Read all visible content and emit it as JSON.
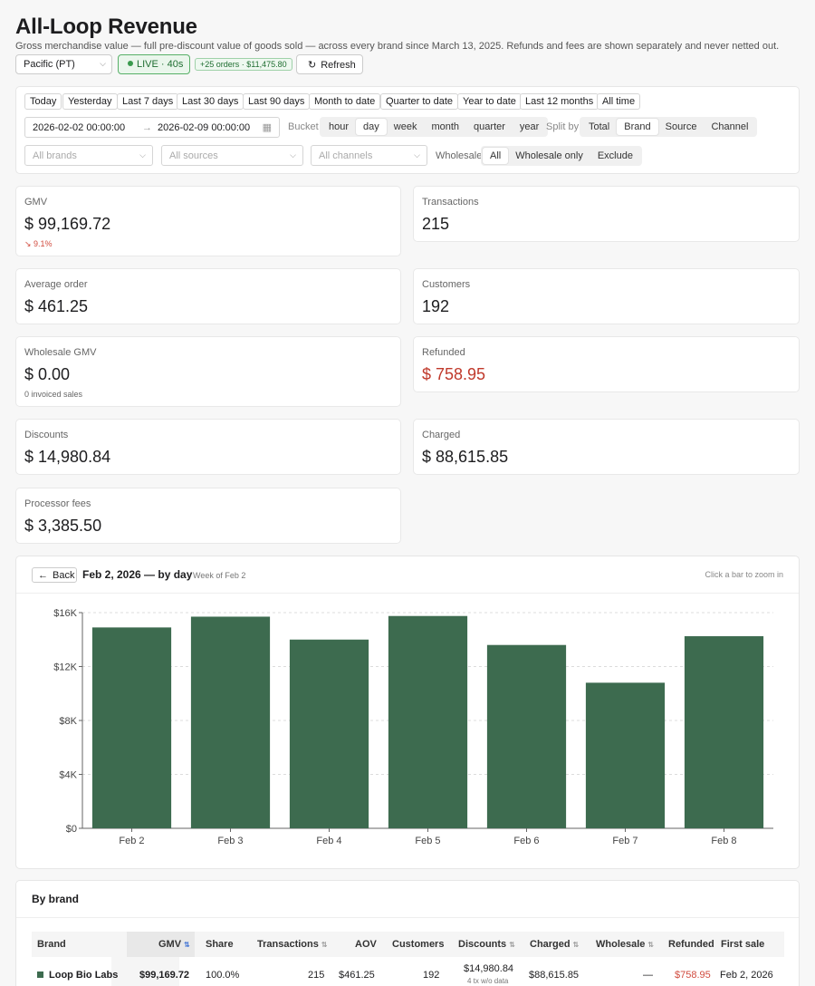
{
  "page": {
    "title": "All-Loop Revenue",
    "subtitle": "Gross merchandise value — full pre-discount value of goods sold — across every brand since March 13, 2025. Refunds and fees are shown separately and never netted out."
  },
  "toolbar": {
    "timezone": "Pacific (PT)",
    "live": "LIVE · 40s",
    "orders_badge": "+25 orders · $11,475.80",
    "refresh": "Refresh"
  },
  "quick_ranges": [
    "Today",
    "Yesterday",
    "Last 7 days",
    "Last 30 days",
    "Last 90 days",
    "Month to date",
    "Quarter to date",
    "Year to date",
    "Last 12 months",
    "All time"
  ],
  "range": {
    "start": "2026-02-02 00:00:00",
    "arrow": "→",
    "end": "2026-02-09 00:00:00"
  },
  "bucket": {
    "label": "Bucket",
    "options": [
      "hour",
      "day",
      "week",
      "month",
      "quarter",
      "year"
    ],
    "selected": "day"
  },
  "split": {
    "label": "Split by",
    "options": [
      "Total",
      "Brand",
      "Source",
      "Channel"
    ],
    "selected": "Brand"
  },
  "filters": {
    "brands": "All brands",
    "sources": "All sources",
    "channels": "All channels"
  },
  "wholesale": {
    "label": "Wholesale",
    "options": [
      "All",
      "Wholesale only",
      "Exclude"
    ],
    "selected": "All"
  },
  "colors": {
    "bar": "#3d6b4f",
    "negative": "#c0392b",
    "live": "#3a9a4d"
  },
  "metrics": {
    "gmv": {
      "label": "GMV",
      "value": "$ 99,169.72",
      "delta": "↘ 9.1%"
    },
    "transactions": {
      "label": "Transactions",
      "value": "215"
    },
    "avg_order": {
      "label": "Average order",
      "value": "$ 461.25"
    },
    "customers": {
      "label": "Customers",
      "value": "192"
    },
    "wholesale_gmv": {
      "label": "Wholesale GMV",
      "value": "$ 0.00",
      "sub": "0 invoiced sales"
    },
    "refunded": {
      "label": "Refunded",
      "value": "$ 758.95"
    },
    "discounts": {
      "label": "Discounts",
      "value": "$ 14,980.84"
    },
    "charged": {
      "label": "Charged",
      "value": "$ 88,615.85"
    },
    "processor_fees": {
      "label": "Processor fees",
      "value": "$ 3,385.50"
    }
  },
  "chart_header": {
    "back": "Back",
    "title": "Feb 2, 2026 — by day",
    "subtitle": "Week of Feb 2",
    "hint": "Click a bar to zoom in"
  },
  "chart_data": {
    "type": "bar",
    "categories": [
      "Feb 2",
      "Feb 3",
      "Feb 4",
      "Feb 5",
      "Feb 6",
      "Feb 7",
      "Feb 8"
    ],
    "values": [
      14900,
      15700,
      14000,
      15750,
      13600,
      10800,
      14250
    ],
    "ylim": [
      0,
      16000
    ],
    "yticks": [
      0,
      4000,
      8000,
      12000,
      16000
    ],
    "ytick_labels": [
      "$0",
      "$4K",
      "$8K",
      "$12K",
      "$16K"
    ],
    "grid": true,
    "title": "",
    "xlabel": "",
    "ylabel": ""
  },
  "brand_table": {
    "title": "By brand",
    "columns": [
      "Brand",
      "GMV",
      "Share",
      "Transactions",
      "AOV",
      "Customers",
      "Discounts",
      "Charged",
      "Wholesale",
      "Refunded",
      "First sale"
    ],
    "rows": [
      {
        "brand": "Loop Bio Labs",
        "gmv": "$99,169.72",
        "share": "100.0%",
        "transactions": "215",
        "aov": "$461.25",
        "customers": "192",
        "discounts": "$14,980.84",
        "discounts_note": "4 tx w/o data",
        "charged": "$88,615.85",
        "wholesale": "—",
        "refunded": "$758.95",
        "first_sale": "Feb 2, 2026"
      }
    ]
  }
}
